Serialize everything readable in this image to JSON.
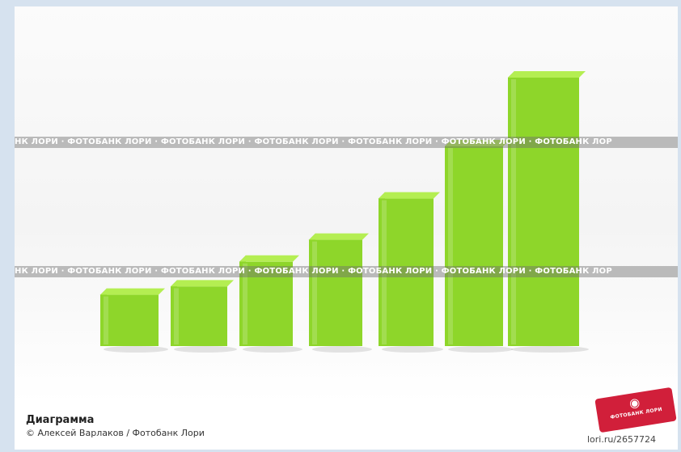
{
  "photo": {
    "subject": "green 3D bar graph",
    "bar_color": "#8ed62a",
    "bar_top_color": "#b4ee52",
    "bar_side_color": "#6fb81a",
    "relative_heights": [
      0.21,
      0.24,
      0.33,
      0.41,
      0.56,
      0.75,
      1.0
    ]
  },
  "watermark": {
    "text": "НК ЛОРИ · ФОТОБАНК ЛОРИ · ФОТОБАНК ЛОРИ · ФОТОБАНК ЛОРИ · ФОТОБАНК ЛОРИ · ФОТОБАНК ЛОРИ · ФОТОБАНК ЛОР"
  },
  "caption": {
    "title": "Диаграмма",
    "credit": "© Алексей Варлаков / Фотобанк Лори"
  },
  "badge": {
    "text": "ФОТОБАНК ЛОРИ",
    "icon": "camera-mascot-icon",
    "color": "#d11f3a"
  },
  "source_url": "lori.ru/2657724"
}
